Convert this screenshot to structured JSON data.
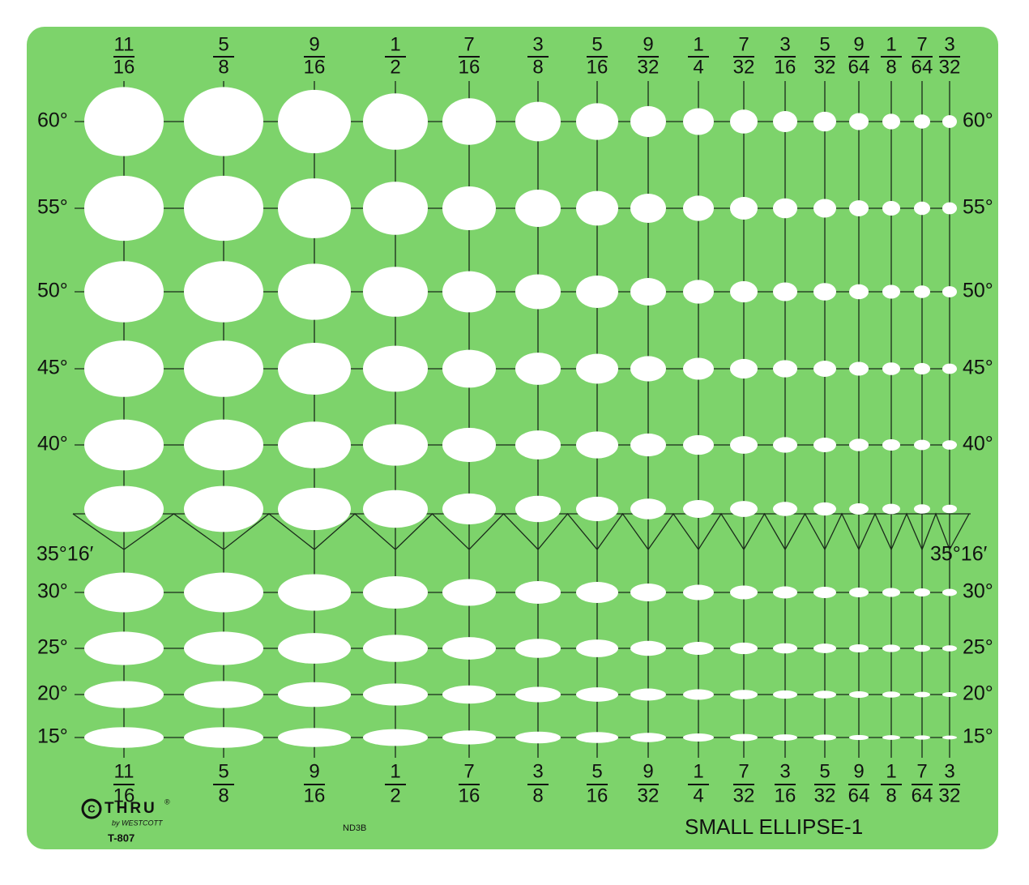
{
  "columns": [
    {
      "numerator": "11",
      "denominator": "16"
    },
    {
      "numerator": "5",
      "denominator": "8"
    },
    {
      "numerator": "9",
      "denominator": "16"
    },
    {
      "numerator": "1",
      "denominator": "2"
    },
    {
      "numerator": "7",
      "denominator": "16"
    },
    {
      "numerator": "3",
      "denominator": "8"
    },
    {
      "numerator": "5",
      "denominator": "16"
    },
    {
      "numerator": "9",
      "denominator": "32"
    },
    {
      "numerator": "1",
      "denominator": "4"
    },
    {
      "numerator": "7",
      "denominator": "32"
    },
    {
      "numerator": "3",
      "denominator": "16"
    },
    {
      "numerator": "5",
      "denominator": "32"
    },
    {
      "numerator": "9",
      "denominator": "64"
    },
    {
      "numerator": "1",
      "denominator": "8"
    },
    {
      "numerator": "7",
      "denominator": "64"
    },
    {
      "numerator": "3",
      "denominator": "32"
    }
  ],
  "rows": [
    "60°",
    "55°",
    "50°",
    "45°",
    "40°",
    "35°16′",
    "30°",
    "25°",
    "20°",
    "15°"
  ],
  "brand": {
    "logo": "C",
    "name": "THRU",
    "registered": "®",
    "by": "by WESTCOTT",
    "model": "T-807"
  },
  "code": "ND3B",
  "title": "SMALL ELLIPSE-1"
}
